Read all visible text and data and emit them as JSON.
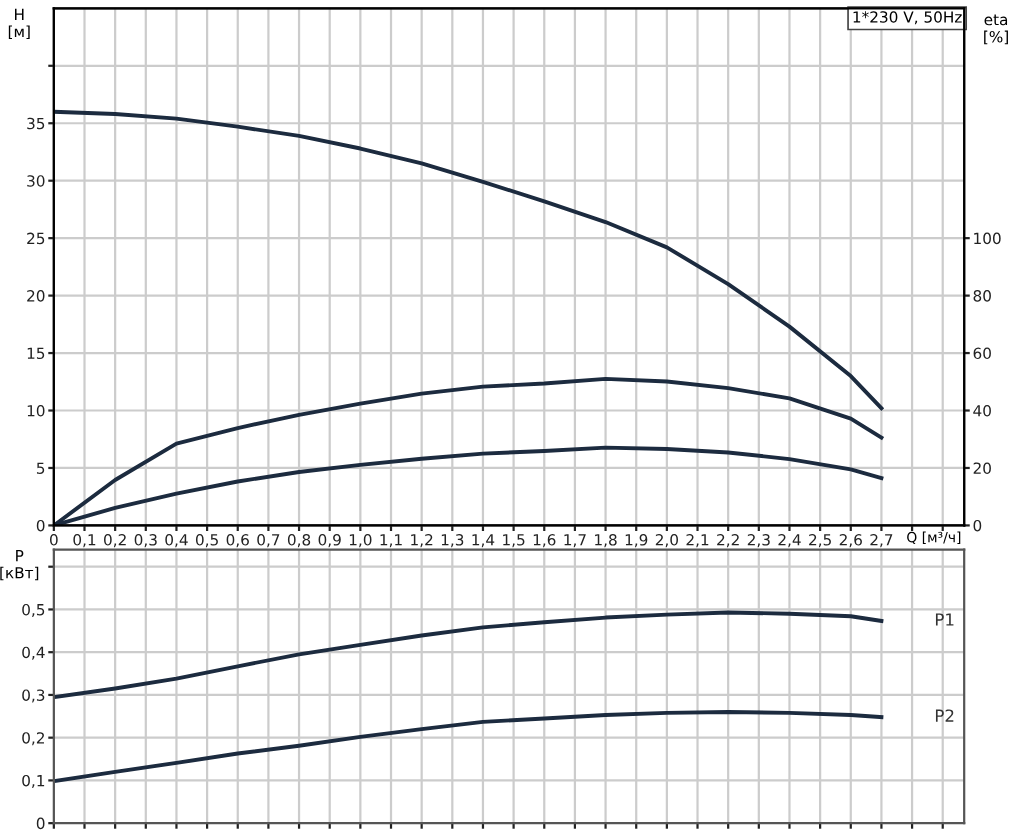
{
  "chart_data": [
    {
      "type": "line",
      "ylabel": "H\n[м]",
      "y2label": "eta\n[%]",
      "xlabel": "Q [м³/ч]",
      "annotations": [
        "1*230 V, 50Hz"
      ],
      "xlim": [
        0,
        2.97
      ],
      "xticks": [
        0,
        {
          "value": 0.1,
          "label": "0,1"
        },
        {
          "value": 0.2,
          "label": "0,2"
        },
        {
          "value": 0.3,
          "label": "0,3"
        },
        {
          "value": 0.4,
          "label": "0,4"
        },
        {
          "value": 0.5,
          "label": "0,5"
        },
        {
          "value": 0.6,
          "label": "0,6"
        },
        {
          "value": 0.7,
          "label": "0,7"
        },
        {
          "value": 0.8,
          "label": "0,8"
        },
        {
          "value": 0.9,
          "label": "0,9"
        },
        {
          "value": 1.0,
          "label": "1,0"
        },
        {
          "value": 1.1,
          "label": "1,1"
        },
        {
          "value": 1.2,
          "label": "1,2"
        },
        {
          "value": 1.3,
          "label": "1,3"
        },
        {
          "value": 1.4,
          "label": "1,4"
        },
        {
          "value": 1.5,
          "label": "1,5"
        },
        {
          "value": 1.6,
          "label": "1,6"
        },
        {
          "value": 1.7,
          "label": "1,7"
        },
        {
          "value": 1.8,
          "label": "1,8"
        },
        {
          "value": 1.9,
          "label": "1,9"
        },
        {
          "value": 2.0,
          "label": "2,0"
        },
        {
          "value": 2.1,
          "label": "2,1"
        },
        {
          "value": 2.2,
          "label": "2,2"
        },
        {
          "value": 2.3,
          "label": "2,3"
        },
        {
          "value": 2.4,
          "label": "2,4"
        },
        {
          "value": 2.5,
          "label": "2,5"
        },
        {
          "value": 2.6,
          "label": "2,6"
        },
        {
          "value": 2.7,
          "label": "2,7"
        },
        {
          "value": 2.8,
          "label": null
        },
        {
          "value": 2.9,
          "label": null
        }
      ],
      "ylim": [
        0,
        45
      ],
      "yticks": [
        0,
        5,
        10,
        15,
        20,
        25,
        30,
        35,
        {
          "value": 40,
          "label": null
        }
      ],
      "y2lim": [
        0,
        180
      ],
      "y2ticks": [
        0,
        20,
        40,
        60,
        80,
        100
      ],
      "grid": true,
      "legend": false,
      "marker": "none",
      "line_style": "solid",
      "x": [
        0,
        0.2,
        0.4,
        0.6,
        0.8,
        1.0,
        1.2,
        1.4,
        1.6,
        1.8,
        2.0,
        2.2,
        2.4,
        2.6,
        2.7
      ],
      "series": [
        {
          "color": "#1c2b3f",
          "values": [
            36,
            35.8,
            35.4,
            34.7,
            33.9,
            32.8,
            31.5,
            29.9,
            28.2,
            26.4,
            24.2,
            21.0,
            17.3,
            13.0,
            10.2
          ]
        },
        {
          "color": "#1c2b3f",
          "axis": "y2",
          "values": [
            0,
            15.8,
            28.5,
            33.9,
            38.5,
            42.4,
            45.9,
            48.3,
            49.4,
            51,
            50.1,
            47.8,
            44.2,
            37.2,
            30.6
          ]
        },
        {
          "color": "#1c2b3f",
          "axis": "y2",
          "values": [
            0,
            6.1,
            11.1,
            15.3,
            18.6,
            21.1,
            23.2,
            25,
            25.9,
            27.1,
            26.6,
            25.4,
            23.1,
            19.5,
            16.5
          ]
        }
      ]
    },
    {
      "type": "line",
      "ylabel": "P\n[кВт]",
      "tick_labels": "y",
      "xlim": [
        0,
        2.97
      ],
      "xticks": [
        0,
        0.1,
        0.2,
        0.3,
        0.4,
        0.5,
        0.6,
        0.7,
        0.8,
        0.9,
        1.0,
        1.1,
        1.2,
        1.3,
        1.4,
        1.5,
        1.6,
        1.7,
        1.8,
        1.9,
        2.0,
        2.1,
        2.2,
        2.3,
        2.4,
        2.5,
        2.6,
        2.7,
        2.8,
        2.9
      ],
      "ylim": [
        0,
        0.64
      ],
      "yticks": [
        0,
        {
          "value": 0.1,
          "label": "0,1"
        },
        {
          "value": 0.2,
          "label": "0,2"
        },
        {
          "value": 0.3,
          "label": "0,3"
        },
        {
          "value": 0.4,
          "label": "0,4"
        },
        {
          "value": 0.5,
          "label": "0,5"
        },
        {
          "value": 0.6,
          "label": null
        }
      ],
      "grid": true,
      "legend": false,
      "marker": "none",
      "line_style": "solid",
      "x": [
        0,
        0.2,
        0.4,
        0.6,
        0.8,
        1.0,
        1.2,
        1.4,
        1.6,
        1.8,
        2.0,
        2.2,
        2.4,
        2.6,
        2.7
      ],
      "series": [
        {
          "name": "P1",
          "color": "#1c2b3f",
          "values": [
            0.295,
            0.315,
            0.338,
            0.367,
            0.395,
            0.417,
            0.439,
            0.458,
            0.47,
            0.481,
            0.488,
            0.493,
            0.49,
            0.484,
            0.473
          ]
        },
        {
          "name": "P2",
          "color": "#1c2b3f",
          "values": [
            0.098,
            0.12,
            0.141,
            0.163,
            0.181,
            0.202,
            0.22,
            0.237,
            0.245,
            0.253,
            0.258,
            0.26,
            0.258,
            0.253,
            0.248
          ]
        }
      ]
    }
  ]
}
